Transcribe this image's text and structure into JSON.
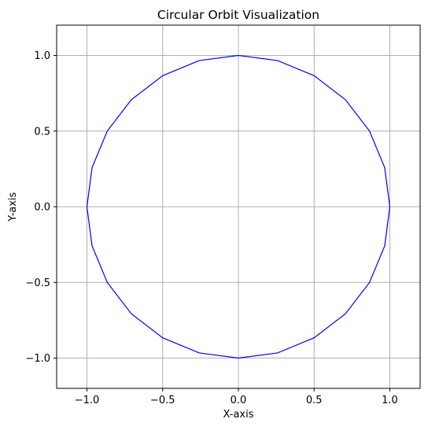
{
  "chart_data": {
    "type": "line",
    "title": "Circular Orbit Visualization",
    "xlabel": "X-axis",
    "ylabel": "Y-axis",
    "xlim": [
      -1.2,
      1.2
    ],
    "ylim": [
      -1.2,
      1.2
    ],
    "grid": true,
    "xticks": [
      -1.0,
      -0.5,
      0.0,
      0.5,
      1.0
    ],
    "yticks": [
      -1.0,
      -0.5,
      0.0,
      0.5,
      1.0
    ],
    "xtick_labels": [
      "−1.0",
      "−0.5",
      "0.0",
      "0.5",
      "1.0"
    ],
    "ytick_labels": [
      "−1.0",
      "−0.5",
      "0.0",
      "0.5",
      "1.0"
    ],
    "series": [
      {
        "color": "#0000ff",
        "x": [
          1.0,
          0.9659,
          0.866,
          0.7071,
          0.5,
          0.2588,
          0.0,
          -0.2588,
          -0.5,
          -0.7071,
          -0.866,
          -0.9659,
          -1.0,
          -0.9659,
          -0.866,
          -0.7071,
          -0.5,
          -0.2588,
          0.0,
          0.2588,
          0.5,
          0.7071,
          0.866,
          0.9659,
          1.0
        ],
        "y": [
          0.0,
          0.2588,
          0.5,
          0.7071,
          0.866,
          0.9659,
          1.0,
          0.9659,
          0.866,
          0.7071,
          0.5,
          0.2588,
          0.0,
          -0.2588,
          -0.5,
          -0.7071,
          -0.866,
          -0.9659,
          -1.0,
          -0.9659,
          -0.866,
          -0.7071,
          -0.5,
          -0.2588,
          0.0
        ]
      }
    ]
  }
}
